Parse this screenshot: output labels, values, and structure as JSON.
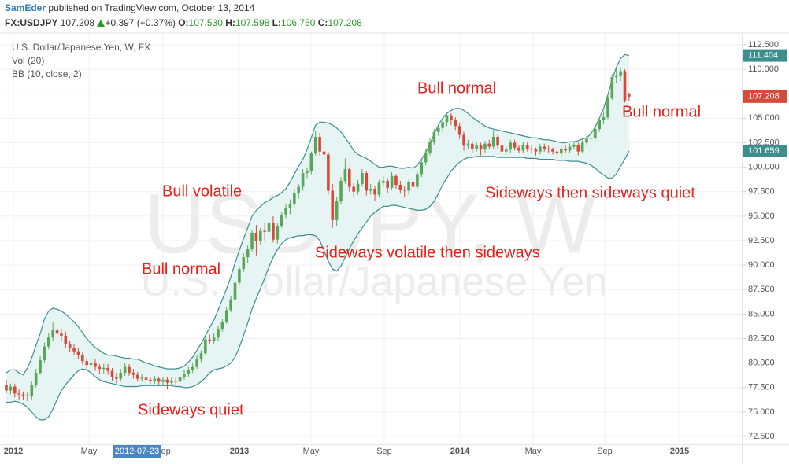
{
  "header": {
    "author": "SamEder",
    "published": "published on TradingView.com, October 13, 2014",
    "symbol": "FX:USDJPY",
    "price": "107.208",
    "change": "+0.397 (+0.37%)",
    "ohlc": [
      {
        "label": "O:",
        "value": "107.530"
      },
      {
        "label": "H:",
        "value": "107.598"
      },
      {
        "label": "L:",
        "value": "106.750"
      },
      {
        "label": "C:",
        "value": "107.208"
      }
    ]
  },
  "chart_data": {
    "type": "candlestick",
    "legend": [
      "U.S. Dollar/Japanese Yen, W, FX",
      "Vol (20)",
      "BB (10, close, 2)"
    ],
    "watermark": [
      "USDJPY, W",
      "U.S. Dollar/Japanese Yen"
    ],
    "x_labels": [
      "2012",
      "May",
      "Sep",
      "2013",
      "May",
      "Sep",
      "2014",
      "May",
      "Sep",
      "2015"
    ],
    "crosshair_label": "2012-07-23",
    "annotations": [
      "Bull normal",
      "Bull normal",
      "Bull volatile",
      "Sideways then sideways quiet",
      "Bull normal",
      "Sideways volatile then sideways",
      "Sideways quiet"
    ],
    "up_color": "#5aa55a",
    "down_color": "#d64a3a",
    "band_color": "#3b8f8c",
    "band_fill": "#e6f4f3",
    "grid": true,
    "ylim": [
      71.7,
      113.7
    ],
    "yticks": [
      {
        "value": 72.5,
        "label": "72.500"
      },
      {
        "value": 75,
        "label": "75.000"
      },
      {
        "value": 77.5,
        "label": "77.500"
      },
      {
        "value": 80,
        "label": "80.000"
      },
      {
        "value": 82.5,
        "label": "82.500"
      },
      {
        "value": 85,
        "label": "85.000"
      },
      {
        "value": 87.5,
        "label": "87.500"
      },
      {
        "value": 90,
        "label": "90.000"
      },
      {
        "value": 92.5,
        "label": "92.500"
      },
      {
        "value": 95,
        "label": "95.000"
      },
      {
        "value": 97.5,
        "label": "97.500"
      },
      {
        "value": 100,
        "label": "100.000"
      },
      {
        "value": 102.5,
        "label": "102.500"
      },
      {
        "value": 105,
        "label": "105.000"
      },
      {
        "value": 107.5,
        "label": "107.500"
      },
      {
        "value": 110,
        "label": "110.000"
      },
      {
        "value": 112.5,
        "label": "112.500"
      }
    ],
    "open": [
      77.8,
      77.2,
      77.6,
      76.9,
      76.8,
      76.7,
      76.6,
      77.8,
      79.0,
      80.3,
      81.7,
      82.6,
      83.4,
      83.0,
      82.8,
      81.9,
      81.5,
      81.2,
      80.8,
      80.2,
      79.8,
      80.0,
      79.6,
      79.4,
      79.5,
      79.2,
      78.6,
      78.4,
      79.0,
      79.6,
      79.0,
      78.8,
      78.4,
      78.5,
      78.3,
      78.2,
      78.4,
      78.1,
      78.3,
      78.0,
      78.2,
      78.1,
      78.6,
      78.9,
      79.3,
      79.6,
      80.4,
      81.0,
      82.4,
      82.3,
      82.6,
      83.5,
      84.2,
      85.4,
      86.5,
      88.2,
      89.6,
      90.8,
      91.6,
      93.3,
      92.5,
      93.5,
      93.4,
      94.3,
      92.6,
      94.0,
      95.1,
      95.8,
      96.2,
      97.4,
      98.0,
      99.4,
      99.6,
      101.4,
      103.1,
      101.6,
      101.3,
      97.6,
      94.6,
      96.5,
      98.6,
      99.8,
      98.0,
      97.5,
      98.3,
      99.4,
      97.6,
      97.8,
      97.2,
      98.4,
      98.6,
      97.9,
      99.1,
      98.2,
      97.7,
      97.6,
      98.5,
      98.0,
      99.3,
      100.5,
      101.5,
      102.6,
      103.6,
      104.0,
      104.6,
      105.3,
      104.8,
      104.2,
      103.3,
      102.2,
      102.4,
      101.9,
      102.2,
      101.8,
      102.4,
      102.1,
      103.1,
      102.2,
      101.6,
      101.8,
      102.5,
      102.0,
      101.7,
      102.3,
      101.9,
      101.8,
      101.6,
      102.1,
      101.9,
      101.8,
      101.6,
      101.4,
      101.9,
      101.7,
      102.1,
      102.3,
      101.6,
      102.5,
      102.9,
      103.0,
      103.9,
      104.8,
      105.1,
      107.1,
      109.2,
      109.3,
      109.8,
      107.53
    ],
    "high": [
      78.3,
      77.9,
      77.9,
      77.3,
      77.1,
      77.0,
      78.2,
      79.4,
      80.7,
      82.1,
      83.1,
      84.2,
      84.0,
      83.5,
      83.2,
      82.3,
      81.9,
      81.6,
      81.1,
      80.6,
      80.5,
      80.4,
      79.9,
      79.9,
      79.9,
      79.5,
      79.0,
      79.4,
      80.0,
      79.9,
      79.4,
      79.1,
      78.9,
      78.8,
      78.6,
      78.7,
      78.6,
      78.6,
      78.6,
      78.5,
      78.5,
      78.9,
      79.3,
      79.6,
      80.0,
      80.8,
      81.3,
      82.7,
      82.9,
      83.0,
      83.8,
      84.5,
      85.7,
      86.8,
      88.5,
      89.9,
      91.2,
      92.0,
      93.6,
      94.1,
      93.8,
      94.3,
      94.9,
      95.0,
      94.3,
      95.4,
      96.3,
      96.7,
      97.8,
      98.3,
      99.8,
      100.0,
      101.6,
      103.7,
      103.5,
      101.9,
      101.6,
      98.3,
      97.0,
      99.0,
      100.9,
      100.0,
      98.4,
      98.7,
      99.8,
      99.6,
      98.3,
      98.1,
      98.7,
      99.1,
      98.9,
      99.5,
      99.3,
      98.6,
      98.1,
      98.8,
      98.8,
      99.6,
      100.8,
      101.8,
      103.0,
      103.9,
      104.4,
      105.0,
      105.4,
      105.5,
      105.1,
      104.5,
      103.6,
      102.8,
      102.7,
      102.6,
      102.5,
      102.7,
      102.8,
      103.8,
      103.3,
      102.5,
      102.1,
      102.8,
      102.8,
      102.3,
      102.6,
      102.6,
      102.2,
      102.0,
      102.4,
      102.4,
      102.2,
      102.0,
      101.9,
      102.2,
      102.2,
      102.4,
      102.6,
      102.5,
      102.8,
      103.2,
      103.5,
      104.2,
      105.1,
      105.7,
      107.4,
      109.5,
      110.1,
      110.1,
      110.0,
      107.598
    ],
    "low": [
      76.9,
      76.8,
      76.5,
      76.3,
      76.2,
      76.1,
      76.3,
      77.5,
      78.8,
      80.0,
      81.4,
      82.3,
      82.5,
      82.2,
      81.6,
      81.1,
      80.8,
      80.4,
      79.8,
      79.4,
      79.4,
      79.2,
      78.9,
      78.9,
      78.8,
      78.2,
      77.9,
      78.1,
      78.7,
      78.7,
      78.4,
      78.1,
      78.1,
      78.0,
      77.9,
      77.9,
      77.8,
      77.8,
      77.3,
      77.7,
      77.8,
      77.9,
      78.3,
      78.6,
      79.0,
      79.4,
      80.1,
      80.8,
      81.9,
      82.0,
      82.3,
      83.2,
      84.0,
      85.2,
      86.3,
      87.9,
      89.3,
      90.2,
      91.4,
      91.0,
      92.1,
      92.5,
      93.0,
      92.3,
      92.2,
      93.8,
      94.8,
      95.2,
      95.9,
      96.8,
      97.6,
      98.9,
      99.3,
      101.2,
      101.2,
      99.8,
      97.2,
      93.8,
      94.0,
      96.2,
      98.3,
      97.5,
      97.0,
      97.2,
      98.0,
      97.1,
      97.2,
      96.6,
      96.9,
      98.0,
      97.4,
      97.7,
      97.8,
      97.3,
      96.9,
      97.2,
      97.6,
      97.8,
      99.0,
      100.2,
      101.2,
      102.3,
      103.2,
      103.6,
      104.2,
      104.3,
      103.8,
      102.9,
      101.7,
      101.8,
      101.5,
      101.6,
      101.2,
      101.5,
      101.8,
      101.9,
      101.9,
      101.3,
      101.3,
      101.5,
      101.7,
      101.4,
      101.4,
      101.6,
      101.4,
      101.2,
      101.3,
      101.6,
      101.5,
      101.3,
      101.1,
      101.1,
      101.4,
      101.5,
      101.8,
      101.2,
      101.4,
      102.3,
      102.6,
      102.8,
      103.6,
      104.4,
      104.9,
      106.9,
      108.6,
      108.8,
      106.6,
      106.75
    ],
    "close": [
      77.2,
      77.6,
      76.9,
      76.8,
      76.7,
      76.6,
      77.8,
      79.0,
      80.3,
      81.7,
      82.6,
      83.4,
      83.0,
      82.8,
      81.9,
      81.5,
      81.2,
      80.8,
      80.2,
      79.8,
      80.0,
      79.6,
      79.4,
      79.5,
      79.2,
      78.6,
      78.4,
      79.0,
      79.6,
      79.0,
      78.8,
      78.4,
      78.5,
      78.3,
      78.2,
      78.4,
      78.1,
      78.3,
      78.0,
      78.2,
      78.1,
      78.6,
      78.9,
      79.3,
      79.6,
      80.4,
      81.0,
      82.4,
      82.3,
      82.6,
      83.5,
      84.2,
      85.4,
      86.5,
      88.2,
      89.6,
      90.8,
      91.6,
      93.3,
      92.5,
      93.5,
      93.4,
      94.3,
      92.6,
      94.0,
      95.1,
      95.8,
      96.2,
      97.4,
      98.0,
      99.4,
      99.6,
      101.4,
      103.1,
      101.6,
      101.3,
      97.6,
      94.6,
      96.5,
      98.6,
      99.8,
      98.0,
      97.5,
      98.3,
      99.4,
      97.6,
      97.8,
      97.2,
      98.4,
      98.6,
      97.9,
      99.1,
      98.2,
      97.7,
      97.6,
      98.5,
      98.0,
      99.3,
      100.5,
      101.5,
      102.6,
      103.6,
      104.0,
      104.6,
      105.3,
      104.8,
      104.2,
      103.3,
      102.2,
      102.4,
      101.9,
      102.2,
      101.8,
      102.4,
      102.1,
      103.1,
      102.2,
      101.6,
      101.8,
      102.5,
      102.0,
      101.7,
      102.3,
      101.9,
      101.8,
      101.6,
      102.1,
      101.9,
      101.8,
      101.6,
      101.4,
      101.9,
      101.7,
      102.1,
      102.3,
      101.6,
      102.5,
      102.9,
      103.0,
      103.9,
      104.8,
      105.1,
      107.1,
      109.2,
      109.3,
      109.8,
      106.8,
      107.208
    ],
    "upper_band": [
      79.0,
      79.3,
      79.3,
      79.0,
      78.8,
      79.5,
      80.5,
      81.8,
      83.0,
      84.5,
      85.3,
      85.6,
      85.5,
      85.3,
      85.0,
      84.6,
      84.2,
      83.7,
      83.1,
      82.5,
      82.0,
      81.6,
      81.3,
      81.0,
      80.8,
      80.8,
      80.7,
      80.6,
      80.5,
      80.5,
      80.4,
      80.4,
      80.2,
      80.0,
      79.9,
      79.7,
      79.6,
      79.5,
      79.4,
      79.4,
      79.4,
      79.5,
      79.7,
      80.1,
      80.6,
      81.3,
      82.0,
      82.8,
      83.6,
      84.4,
      85.4,
      86.5,
      87.6,
      88.8,
      90.2,
      91.5,
      92.7,
      93.8,
      95.0,
      95.6,
      96.0,
      96.4,
      96.6,
      96.9,
      97.1,
      97.4,
      97.8,
      98.5,
      99.3,
      100.1,
      100.8,
      101.8,
      103.0,
      104.3,
      104.6,
      104.6,
      104.5,
      104.3,
      104.0,
      103.6,
      103.0,
      102.4,
      101.7,
      101.3,
      101.1,
      100.9,
      100.6,
      100.3,
      100.0,
      100.0,
      100.1,
      100.1,
      100.0,
      99.9,
      99.9,
      100.0,
      99.9,
      100.2,
      100.8,
      101.5,
      102.4,
      103.4,
      104.3,
      105.0,
      105.5,
      105.8,
      106.0,
      106.0,
      105.8,
      105.5,
      105.1,
      104.8,
      104.5,
      104.2,
      104.0,
      103.9,
      103.8,
      103.7,
      103.6,
      103.5,
      103.4,
      103.3,
      103.2,
      103.1,
      103.0,
      103.0,
      102.9,
      102.8,
      102.8,
      102.7,
      102.6,
      102.5,
      102.5,
      102.6,
      102.6,
      102.7,
      102.9,
      103.0,
      103.4,
      104.1,
      105.0,
      106.0,
      107.4,
      108.9,
      110.2,
      111.1,
      111.5,
      111.404
    ],
    "lower_band": [
      76.0,
      76.0,
      76.1,
      76.0,
      75.8,
      75.5,
      75.0,
      74.5,
      74.2,
      74.2,
      74.5,
      75.3,
      76.3,
      77.2,
      77.8,
      78.3,
      78.8,
      79.2,
      79.4,
      79.3,
      79.0,
      78.6,
      78.3,
      78.1,
      78.0,
      77.9,
      77.8,
      77.7,
      77.6,
      77.6,
      77.6,
      77.6,
      77.7,
      77.7,
      77.7,
      77.7,
      77.7,
      77.7,
      77.7,
      77.7,
      77.6,
      77.6,
      77.5,
      77.5,
      77.6,
      77.8,
      78.1,
      78.5,
      79.0,
      79.3,
      79.4,
      79.5,
      79.7,
      80.0,
      80.6,
      81.6,
      82.8,
      84.1,
      85.5,
      86.6,
      87.6,
      88.7,
      89.8,
      90.8,
      91.6,
      92.2,
      92.6,
      92.8,
      92.9,
      93.0,
      93.0,
      93.1,
      93.1,
      93.0,
      92.5,
      91.5,
      90.4,
      89.6,
      89.4,
      89.9,
      90.8,
      91.7,
      92.5,
      93.2,
      93.8,
      94.4,
      95.0,
      95.4,
      95.7,
      96.0,
      96.0,
      96.1,
      96.1,
      96.0,
      95.9,
      95.8,
      95.7,
      95.6,
      95.6,
      95.7,
      96.0,
      96.5,
      97.3,
      98.2,
      98.9,
      99.6,
      100.1,
      100.5,
      100.8,
      101.0,
      101.0,
      101.1,
      101.1,
      101.1,
      101.1,
      101.1,
      101.0,
      101.0,
      101.0,
      101.0,
      101.0,
      101.0,
      101.0,
      100.9,
      100.9,
      100.9,
      100.8,
      100.8,
      100.8,
      100.8,
      100.7,
      100.7,
      100.7,
      100.6,
      100.6,
      100.6,
      100.5,
      100.4,
      100.2,
      99.9,
      99.5,
      99.2,
      98.9,
      98.9,
      99.3,
      100.1,
      100.8,
      101.659
    ]
  }
}
